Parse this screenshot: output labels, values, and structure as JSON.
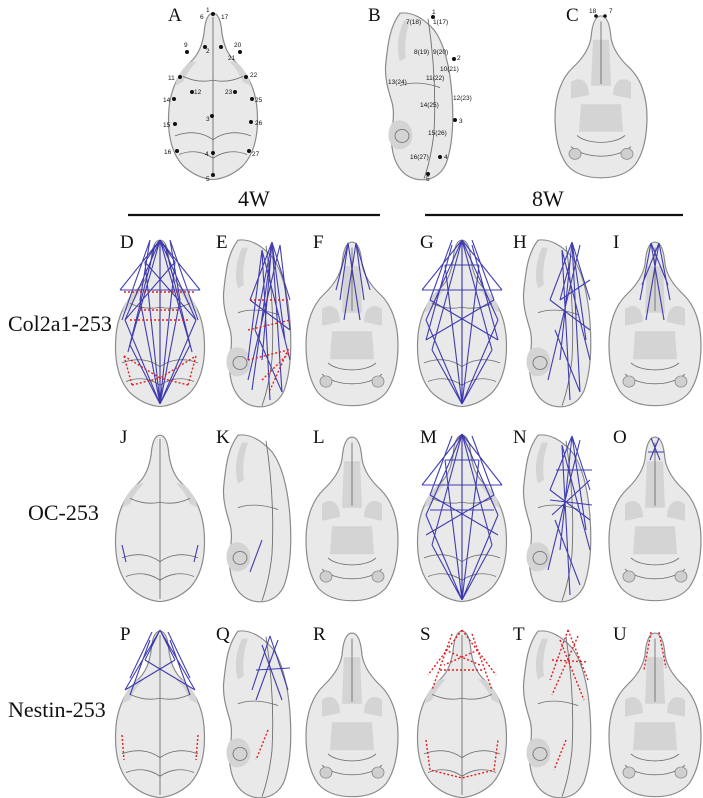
{
  "figure": {
    "panel_letters": [
      "A",
      "B",
      "C",
      "D",
      "E",
      "F",
      "G",
      "H",
      "I",
      "J",
      "K",
      "L",
      "M",
      "N",
      "O",
      "P",
      "Q",
      "R",
      "S",
      "T",
      "U"
    ],
    "group_labels": {
      "left": "4W",
      "right": "8W"
    },
    "row_labels": [
      "Col2a1-253",
      "OC-253",
      "Nestin-253"
    ],
    "landmarks_A": [
      "1",
      "2",
      "3",
      "4",
      "5",
      "6",
      "9",
      "11",
      "12",
      "14",
      "15",
      "16",
      "17",
      "20",
      "21",
      "22",
      "23",
      "25",
      "26",
      "27"
    ],
    "landmarks_B": [
      "1",
      "2",
      "3",
      "4",
      "5",
      "7(18)",
      "8(19)",
      "9(20)",
      "10(21)",
      "11(22)",
      "12(23)",
      "13(24)",
      "14(25)",
      "15(26)",
      "16(27)",
      "1(17)"
    ],
    "landmarks_C": [
      "18",
      "7"
    ],
    "colors": {
      "positive_lines": "#2e2aa8",
      "negative_lines": "#e02020"
    }
  }
}
